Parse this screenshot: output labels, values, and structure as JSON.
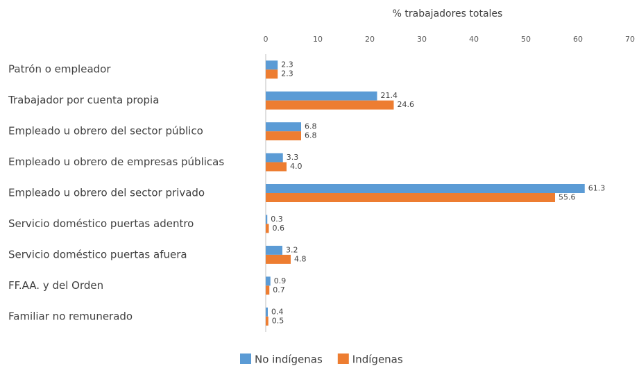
{
  "chart_data": {
    "type": "barh",
    "x_label": "% trabajadores totales",
    "categories": [
      "Patrón o empleador",
      "Trabajador por cuenta propia",
      "Empleado u obrero del sector público",
      "Empleado u obrero de empresas públicas",
      "Empleado u obrero del sector privado",
      "Servicio doméstico puertas adentro",
      "Servicio doméstico puertas afuera",
      "FF.AA. y del Orden",
      "Familiar no remunerado"
    ],
    "series": [
      {
        "name": "No indígenas",
        "color": "#5b9bd5",
        "values": [
          2.3,
          21.4,
          6.8,
          3.3,
          61.3,
          0.3,
          3.2,
          0.9,
          0.4
        ],
        "value_labels": [
          "2.3",
          "21.4",
          "6.8",
          "3.3",
          "61.3",
          "0.3",
          "3.2",
          "0.9",
          "0.4"
        ]
      },
      {
        "name": "Indígenas",
        "color": "#ed7d31",
        "values": [
          2.3,
          24.6,
          6.8,
          4.0,
          55.6,
          0.6,
          4.8,
          0.7,
          0.5
        ],
        "value_labels": [
          "2.3",
          "24.6",
          "6.8",
          "4.0",
          "55.6",
          "0.6",
          "4.8",
          "0.7",
          "0.5"
        ]
      }
    ],
    "xlim": [
      0,
      70
    ],
    "xticks": [
      0,
      10,
      20,
      30,
      40,
      50,
      60,
      70
    ],
    "grid": false,
    "legend": "bottom"
  }
}
